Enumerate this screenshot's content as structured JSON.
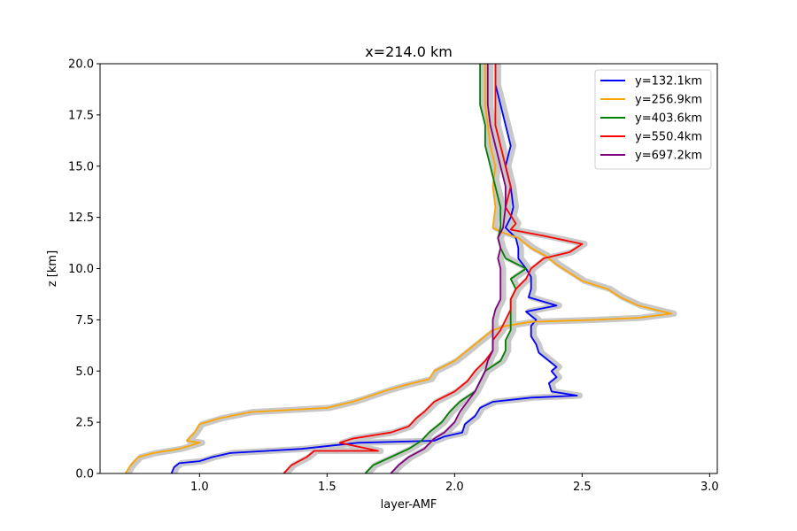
{
  "chart_data": {
    "type": "line",
    "title": "x=214.0 km",
    "xlabel": "layer-AMF",
    "ylabel": "z [km]",
    "xlim": [
      0.61,
      3.03
    ],
    "ylim": [
      0,
      20
    ],
    "xticks": [
      "1.0",
      "1.5",
      "2.0",
      "2.5",
      "3.0"
    ],
    "xtick_values": [
      1.0,
      1.5,
      2.0,
      2.5,
      3.0
    ],
    "yticks": [
      "0.0",
      "2.5",
      "5.0",
      "7.5",
      "10.0",
      "12.5",
      "15.0",
      "17.5",
      "20.0"
    ],
    "ytick_values": [
      0,
      2.5,
      5,
      7.5,
      10,
      12.5,
      15,
      17.5,
      20
    ],
    "grid": false,
    "legend_position": "top-right",
    "uncertainty_band_color": "#c8c8c8",
    "series": [
      {
        "name": "y=132.1km",
        "color": "#0000ff",
        "points": [
          [
            0.89,
            0
          ],
          [
            0.9,
            0.3
          ],
          [
            0.92,
            0.5
          ],
          [
            1.0,
            0.6
          ],
          [
            1.05,
            0.8
          ],
          [
            1.12,
            1.0
          ],
          [
            1.4,
            1.2
          ],
          [
            1.62,
            1.5
          ],
          [
            1.92,
            1.6
          ],
          [
            1.96,
            1.8
          ],
          [
            2.03,
            2.0
          ],
          [
            2.04,
            2.4
          ],
          [
            2.08,
            2.8
          ],
          [
            2.1,
            3.2
          ],
          [
            2.15,
            3.5
          ],
          [
            2.3,
            3.7
          ],
          [
            2.48,
            3.8
          ],
          [
            2.38,
            4.0
          ],
          [
            2.37,
            4.4
          ],
          [
            2.4,
            4.7
          ],
          [
            2.38,
            5.0
          ],
          [
            2.4,
            5.2
          ],
          [
            2.37,
            5.5
          ],
          [
            2.33,
            5.9
          ],
          [
            2.32,
            6.3
          ],
          [
            2.3,
            6.7
          ],
          [
            2.3,
            7.2
          ],
          [
            2.32,
            7.5
          ],
          [
            2.28,
            7.9
          ],
          [
            2.4,
            8.2
          ],
          [
            2.29,
            8.6
          ],
          [
            2.3,
            9.0
          ],
          [
            2.3,
            9.6
          ],
          [
            2.28,
            10.0
          ],
          [
            2.25,
            10.5
          ],
          [
            2.25,
            11.0
          ],
          [
            2.24,
            11.5
          ],
          [
            2.2,
            12.0
          ],
          [
            2.22,
            12.5
          ],
          [
            2.23,
            13.0
          ],
          [
            2.22,
            14.0
          ],
          [
            2.2,
            15.0
          ],
          [
            2.22,
            16.0
          ],
          [
            2.2,
            17.0
          ],
          [
            2.18,
            18.0
          ],
          [
            2.16,
            19.0
          ],
          [
            2.16,
            20.0
          ]
        ]
      },
      {
        "name": "y=256.9km",
        "color": "#ffa500",
        "points": [
          [
            0.71,
            0
          ],
          [
            0.73,
            0.4
          ],
          [
            0.76,
            0.8
          ],
          [
            0.82,
            1.0
          ],
          [
            0.92,
            1.2
          ],
          [
            1.0,
            1.5
          ],
          [
            0.95,
            1.6
          ],
          [
            0.98,
            2.0
          ],
          [
            1.0,
            2.4
          ],
          [
            1.08,
            2.7
          ],
          [
            1.2,
            3.0
          ],
          [
            1.5,
            3.2
          ],
          [
            1.6,
            3.5
          ],
          [
            1.65,
            3.7
          ],
          [
            1.72,
            4.0
          ],
          [
            1.8,
            4.3
          ],
          [
            1.9,
            4.6
          ],
          [
            1.92,
            5.0
          ],
          [
            2.0,
            5.5
          ],
          [
            2.05,
            6.0
          ],
          [
            2.1,
            6.5
          ],
          [
            2.15,
            7.0
          ],
          [
            2.2,
            7.2
          ],
          [
            2.3,
            7.4
          ],
          [
            2.55,
            7.5
          ],
          [
            2.72,
            7.6
          ],
          [
            2.85,
            7.8
          ],
          [
            2.72,
            8.2
          ],
          [
            2.65,
            8.6
          ],
          [
            2.6,
            9.0
          ],
          [
            2.5,
            9.4
          ],
          [
            2.45,
            9.8
          ],
          [
            2.4,
            10.2
          ],
          [
            2.36,
            10.6
          ],
          [
            2.3,
            11.0
          ],
          [
            2.25,
            11.5
          ],
          [
            2.18,
            11.8
          ],
          [
            2.15,
            12.0
          ],
          [
            2.16,
            13.0
          ],
          [
            2.15,
            14.0
          ],
          [
            2.16,
            15.0
          ],
          [
            2.14,
            16.0
          ],
          [
            2.13,
            17.0
          ],
          [
            2.12,
            18.0
          ],
          [
            2.12,
            19.0
          ],
          [
            2.12,
            20.0
          ]
        ]
      },
      {
        "name": "y=403.6km",
        "color": "#008000",
        "points": [
          [
            1.65,
            0
          ],
          [
            1.68,
            0.4
          ],
          [
            1.75,
            0.8
          ],
          [
            1.82,
            1.2
          ],
          [
            1.87,
            1.6
          ],
          [
            1.9,
            2.0
          ],
          [
            1.95,
            2.5
          ],
          [
            1.98,
            3.0
          ],
          [
            2.02,
            3.5
          ],
          [
            2.08,
            4.0
          ],
          [
            2.1,
            4.5
          ],
          [
            2.12,
            5.0
          ],
          [
            2.18,
            5.5
          ],
          [
            2.2,
            6.0
          ],
          [
            2.2,
            6.5
          ],
          [
            2.22,
            7.0
          ],
          [
            2.22,
            7.5
          ],
          [
            2.22,
            8.0
          ],
          [
            2.22,
            8.5
          ],
          [
            2.24,
            9.0
          ],
          [
            2.22,
            9.5
          ],
          [
            2.28,
            10.0
          ],
          [
            2.2,
            10.5
          ],
          [
            2.18,
            11.0
          ],
          [
            2.17,
            11.5
          ],
          [
            2.18,
            12.0
          ],
          [
            2.18,
            13.0
          ],
          [
            2.16,
            14.0
          ],
          [
            2.14,
            15.0
          ],
          [
            2.12,
            16.0
          ],
          [
            2.12,
            17.0
          ],
          [
            2.1,
            18.0
          ],
          [
            2.1,
            19.0
          ],
          [
            2.1,
            20.0
          ]
        ]
      },
      {
        "name": "y=550.4km",
        "color": "#ff0000",
        "points": [
          [
            1.33,
            0
          ],
          [
            1.36,
            0.4
          ],
          [
            1.42,
            0.8
          ],
          [
            1.45,
            1.1
          ],
          [
            1.7,
            1.1
          ],
          [
            1.55,
            1.5
          ],
          [
            1.6,
            1.7
          ],
          [
            1.75,
            2.0
          ],
          [
            1.82,
            2.3
          ],
          [
            1.85,
            2.7
          ],
          [
            1.88,
            3.0
          ],
          [
            1.92,
            3.5
          ],
          [
            2.0,
            4.0
          ],
          [
            2.05,
            4.5
          ],
          [
            2.08,
            5.0
          ],
          [
            2.12,
            5.5
          ],
          [
            2.15,
            6.0
          ],
          [
            2.15,
            6.5
          ],
          [
            2.18,
            7.0
          ],
          [
            2.2,
            7.5
          ],
          [
            2.22,
            8.0
          ],
          [
            2.22,
            8.5
          ],
          [
            2.24,
            9.0
          ],
          [
            2.28,
            9.5
          ],
          [
            2.3,
            10.0
          ],
          [
            2.35,
            10.5
          ],
          [
            2.45,
            10.8
          ],
          [
            2.5,
            11.2
          ],
          [
            2.35,
            11.6
          ],
          [
            2.22,
            11.9
          ],
          [
            2.24,
            12.2
          ],
          [
            2.2,
            13.0
          ],
          [
            2.22,
            14.0
          ],
          [
            2.2,
            15.0
          ],
          [
            2.18,
            16.0
          ],
          [
            2.16,
            17.0
          ],
          [
            2.16,
            18.0
          ],
          [
            2.16,
            19.0
          ],
          [
            2.16,
            20.0
          ]
        ]
      },
      {
        "name": "y=697.2km",
        "color": "#800080",
        "points": [
          [
            1.75,
            0
          ],
          [
            1.78,
            0.4
          ],
          [
            1.82,
            0.8
          ],
          [
            1.88,
            1.2
          ],
          [
            1.92,
            1.7
          ],
          [
            1.96,
            2.0
          ],
          [
            2.0,
            2.5
          ],
          [
            2.02,
            3.0
          ],
          [
            2.05,
            3.5
          ],
          [
            2.08,
            4.0
          ],
          [
            2.1,
            4.5
          ],
          [
            2.12,
            5.0
          ],
          [
            2.13,
            5.5
          ],
          [
            2.15,
            6.0
          ],
          [
            2.15,
            6.5
          ],
          [
            2.15,
            7.0
          ],
          [
            2.15,
            7.5
          ],
          [
            2.16,
            8.0
          ],
          [
            2.18,
            8.5
          ],
          [
            2.18,
            9.0
          ],
          [
            2.18,
            9.5
          ],
          [
            2.18,
            10.0
          ],
          [
            2.17,
            10.5
          ],
          [
            2.18,
            11.0
          ],
          [
            2.17,
            11.5
          ],
          [
            2.19,
            12.0
          ],
          [
            2.2,
            13.0
          ],
          [
            2.2,
            14.0
          ],
          [
            2.18,
            15.0
          ],
          [
            2.16,
            16.0
          ],
          [
            2.14,
            17.0
          ],
          [
            2.13,
            18.0
          ],
          [
            2.13,
            19.0
          ],
          [
            2.13,
            20.0
          ]
        ]
      }
    ]
  }
}
